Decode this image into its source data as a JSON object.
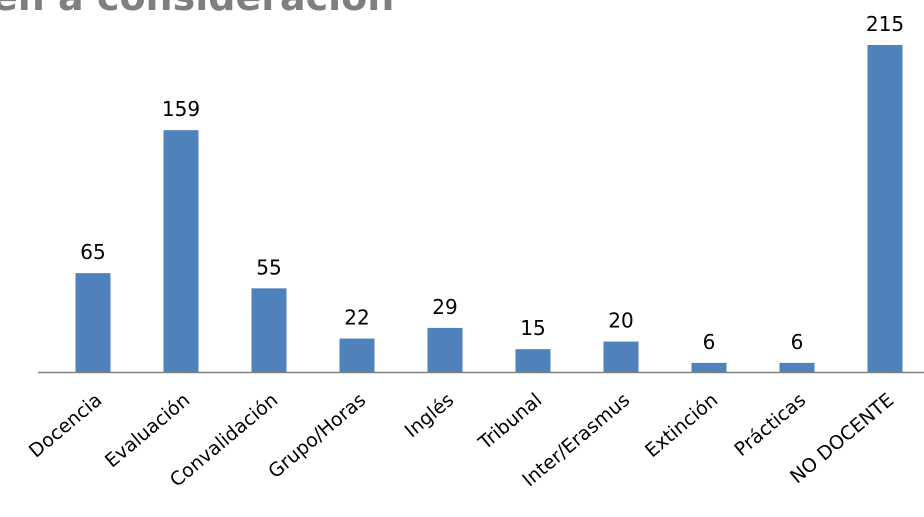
{
  "page": {
    "title_fragment": "en a consideración"
  },
  "chart_data": {
    "type": "bar",
    "title": "",
    "xlabel": "",
    "ylabel": "",
    "ylim": [
      0,
      215
    ],
    "grid": false,
    "legend": "none",
    "bar_color": "#4f81bd",
    "axis_color": "#808080",
    "categories": [
      "Docencia",
      "Evaluación",
      "Convalidación",
      "Grupo/Horas",
      "Inglés",
      "Tribunal",
      "Inter/Erasmus",
      "Extinción",
      "Prácticas",
      "NO DOCENTE"
    ],
    "values": [
      65,
      159,
      55,
      22,
      29,
      15,
      20,
      6,
      6,
      215
    ]
  }
}
